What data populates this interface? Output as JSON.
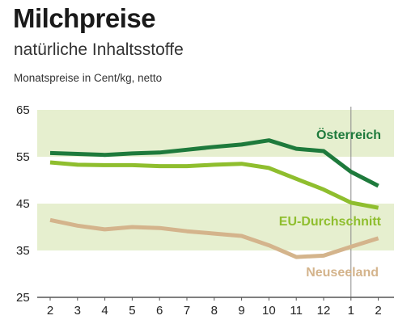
{
  "header": {
    "title": "Milchpreise",
    "subtitle": "natürliche Inhaltsstoffe",
    "unit_label": "Monatspreise in Cent/kg, netto"
  },
  "colors": {
    "band": "#e6efcf",
    "austria": "#1e7a3c",
    "eu": "#8fbe2e",
    "newzealand": "#d4b48c",
    "divider": "#888888",
    "axis": "#555555"
  },
  "chart_data": {
    "type": "line",
    "title": "Milchpreise",
    "subtitle": "natürliche Inhaltsstoffe",
    "ylabel": "Monatspreise in Cent/kg, netto",
    "xlabel": "",
    "categories": [
      "2",
      "3",
      "4",
      "5",
      "6",
      "7",
      "8",
      "9",
      "10",
      "11",
      "12",
      "1",
      "2"
    ],
    "ylim": [
      25,
      65
    ],
    "yticks": [
      65,
      55,
      45,
      35,
      25
    ],
    "bands": [
      [
        55,
        65
      ],
      [
        35,
        45
      ]
    ],
    "year_divider_index": 11,
    "series": [
      {
        "name": "Österreich",
        "color": "#1e7a3c",
        "values": [
          55.8,
          55.6,
          55.4,
          55.7,
          55.9,
          56.5,
          57.1,
          57.6,
          58.5,
          56.7,
          56.2,
          51.8,
          48.8
        ]
      },
      {
        "name": "EU-Durchschnitt",
        "color": "#8fbe2e",
        "values": [
          53.8,
          53.3,
          53.2,
          53.2,
          53.0,
          53.0,
          53.3,
          53.5,
          52.6,
          50.3,
          48.0,
          45.2,
          44.1
        ]
      },
      {
        "name": "Neuseeland",
        "color": "#d4b48c",
        "values": [
          41.5,
          40.3,
          39.5,
          40.0,
          39.8,
          39.1,
          38.6,
          38.1,
          36.1,
          33.6,
          33.9,
          35.8,
          37.6
        ]
      }
    ]
  }
}
